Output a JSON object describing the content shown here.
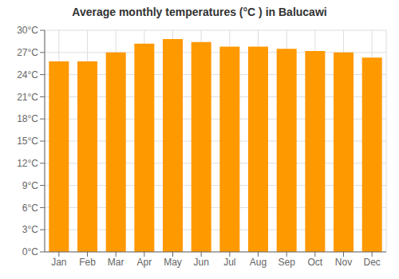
{
  "chart_data": {
    "type": "bar",
    "title": "Average monthly temperatures (°C ) in Balucawi",
    "categories": [
      "Jan",
      "Feb",
      "Mar",
      "Apr",
      "May",
      "Jun",
      "Jul",
      "Aug",
      "Sep",
      "Oct",
      "Nov",
      "Dec"
    ],
    "values": [
      25.8,
      25.8,
      27.0,
      28.2,
      28.8,
      28.4,
      27.8,
      27.8,
      27.5,
      27.2,
      27.0,
      26.3
    ],
    "color": "#FF9900",
    "ylim": [
      0,
      30
    ],
    "yticks": [
      {
        "value": 0,
        "label": "0°C"
      },
      {
        "value": 3,
        "label": "3°C"
      },
      {
        "value": 6,
        "label": "6°C"
      },
      {
        "value": 9,
        "label": "9°C"
      },
      {
        "value": 12,
        "label": "12°C"
      },
      {
        "value": 15,
        "label": "15°C"
      },
      {
        "value": 18,
        "label": "18°C"
      },
      {
        "value": 21,
        "label": "21°C"
      },
      {
        "value": 24,
        "label": "24°C"
      },
      {
        "value": 27,
        "label": "27°C"
      },
      {
        "value": 30,
        "label": "30°C"
      }
    ],
    "grid": true
  }
}
